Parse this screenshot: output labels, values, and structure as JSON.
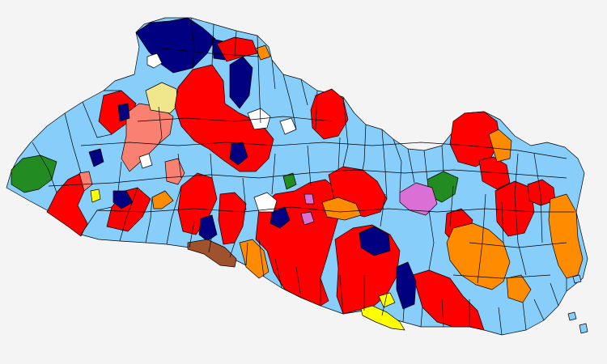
{
  "map": {
    "palette": {
      "light_blue": "#87cefa",
      "red": "#ff0000",
      "navy": "#000080",
      "orange": "#ff8c00",
      "salmon": "#fa8072",
      "khaki": "#f0e68c",
      "green": "#228b22",
      "orchid": "#da70d6",
      "yellow": "#ffff00",
      "brown": "#a0522d",
      "white": "#ffffff",
      "background": "#f4f4f4"
    },
    "legend": []
  }
}
